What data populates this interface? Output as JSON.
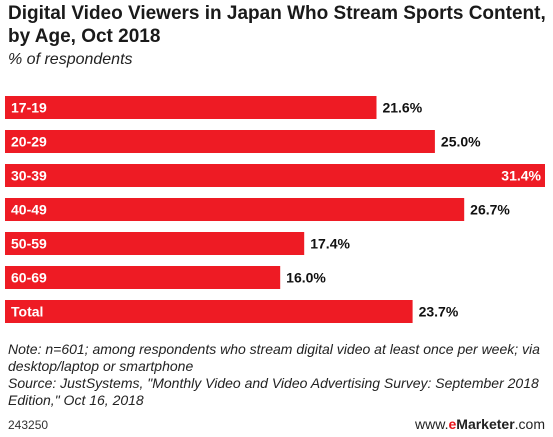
{
  "title": "Digital Video Viewers in Japan Who Stream Sports Content, by Age, Oct 2018",
  "subtitle": "% of respondents",
  "note": "Note: n=601; among respondents who stream digital video at least once per week; via desktop/laptop or smartphone",
  "source": "Source: JustSystems, \"Monthly Video and Video Advertising Survey: September 2018 Edition,\" Oct 16, 2018",
  "footer": {
    "id": "243250",
    "brand_prefix": "www.",
    "brand_accent": "e",
    "brand_name": "Marketer",
    "brand_suffix": ".com"
  },
  "colors": {
    "bar": "#ee1b24",
    "bar_label": "#ffffff",
    "value_label": "#111111"
  },
  "chart_data": {
    "type": "bar",
    "orientation": "horizontal",
    "categories": [
      "17-19",
      "20-29",
      "30-39",
      "40-49",
      "50-59",
      "60-69",
      "Total"
    ],
    "values": [
      21.6,
      25.0,
      31.4,
      26.7,
      17.4,
      16.0,
      23.7
    ],
    "value_labels": [
      "21.6%",
      "25.0%",
      "31.4%",
      "26.7%",
      "17.4%",
      "16.0%",
      "23.7%"
    ],
    "xlim": [
      0,
      31.4
    ],
    "grid": false,
    "legend": "none"
  }
}
